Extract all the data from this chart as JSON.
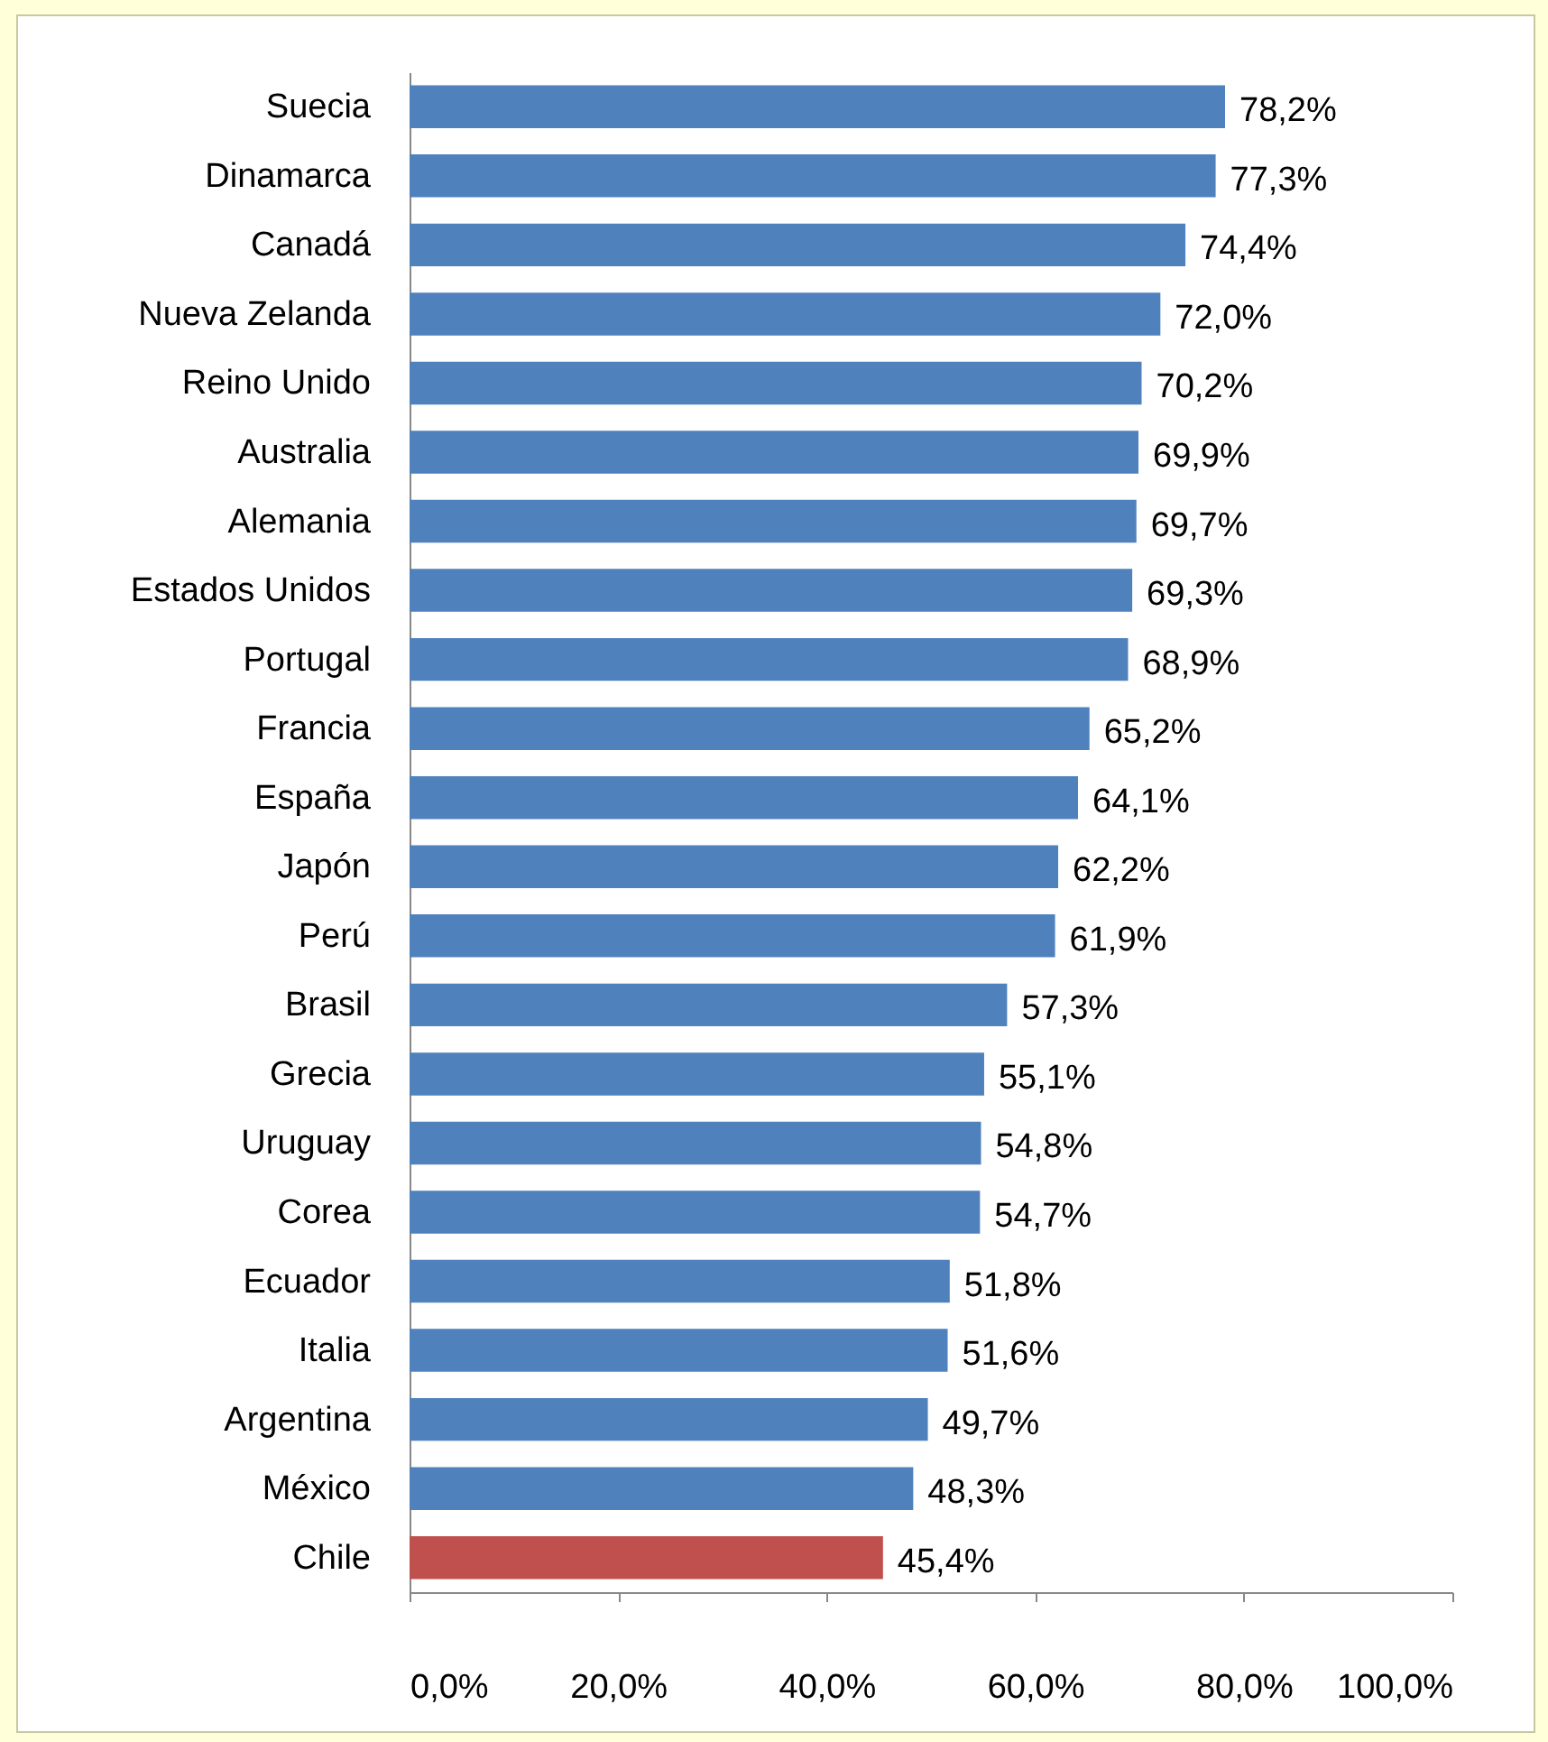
{
  "chart_data": {
    "type": "bar",
    "orientation": "horizontal",
    "categories": [
      "Suecia",
      "Dinamarca",
      "Canadá",
      "Nueva Zelanda",
      "Reino Unido",
      "Australia",
      "Alemania",
      "Estados Unidos",
      "Portugal",
      "Francia",
      "España",
      "Japón",
      "Perú",
      "Brasil",
      "Grecia",
      "Uruguay",
      "Corea",
      "Ecuador",
      "Italia",
      "Argentina",
      "México",
      "Chile"
    ],
    "values": [
      78.2,
      77.3,
      74.4,
      72.0,
      70.2,
      69.9,
      69.7,
      69.3,
      68.9,
      65.2,
      64.1,
      62.2,
      61.9,
      57.3,
      55.1,
      54.8,
      54.7,
      51.8,
      51.6,
      49.7,
      48.3,
      45.4
    ],
    "value_labels": [
      "78,2%",
      "77,3%",
      "74,4%",
      "72,0%",
      "70,2%",
      "69,9%",
      "69,7%",
      "69,3%",
      "68,9%",
      "65,2%",
      "64,1%",
      "62,2%",
      "61,9%",
      "57,3%",
      "55,1%",
      "54,8%",
      "54,7%",
      "51,8%",
      "51,6%",
      "49,7%",
      "48,3%",
      "45,4%"
    ],
    "colors": [
      "#4f81bd",
      "#4f81bd",
      "#4f81bd",
      "#4f81bd",
      "#4f81bd",
      "#4f81bd",
      "#4f81bd",
      "#4f81bd",
      "#4f81bd",
      "#4f81bd",
      "#4f81bd",
      "#4f81bd",
      "#4f81bd",
      "#4f81bd",
      "#4f81bd",
      "#4f81bd",
      "#4f81bd",
      "#4f81bd",
      "#4f81bd",
      "#4f81bd",
      "#4f81bd",
      "#c0504d"
    ],
    "xlim": [
      0,
      100
    ],
    "xticks": [
      {
        "value": 0,
        "label": "0,0%"
      },
      {
        "value": 20,
        "label": "20,0%"
      },
      {
        "value": 40,
        "label": "40,0%"
      },
      {
        "value": 60,
        "label": "60,0%"
      },
      {
        "value": 80,
        "label": "80,0%"
      },
      {
        "value": 100,
        "label": "100,0%"
      }
    ],
    "grid": false,
    "legend": false
  }
}
